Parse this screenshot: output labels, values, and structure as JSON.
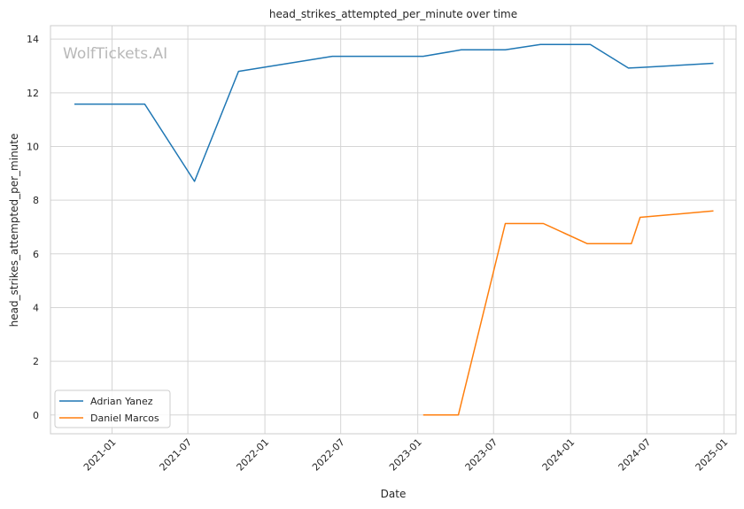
{
  "chart_data": {
    "type": "line",
    "title": "head_strikes_attempted_per_minute over time",
    "xlabel": "Date",
    "ylabel": "head_strikes_attempted_per_minute",
    "watermark": "WolfTickets.AI",
    "x_ticks": [
      "2021-01",
      "2021-07",
      "2022-01",
      "2022-07",
      "2023-01",
      "2023-07",
      "2024-01",
      "2024-07",
      "2025-01"
    ],
    "y_ticks": [
      0,
      2,
      4,
      6,
      8,
      10,
      12,
      14
    ],
    "xlim": [
      "2020-08-07",
      "2025-01-30"
    ],
    "ylim": [
      -0.7,
      14.5
    ],
    "grid": true,
    "legend_position": "lower-left",
    "series": [
      {
        "name": "Adrian Yanez",
        "color": "#1f77b4",
        "points": [
          {
            "x": "2020-10-03",
            "y": 11.58
          },
          {
            "x": "2021-03-20",
            "y": 11.58
          },
          {
            "x": "2021-07-17",
            "y": 8.7
          },
          {
            "x": "2021-10-30",
            "y": 12.8
          },
          {
            "x": "2022-06-11",
            "y": 13.36
          },
          {
            "x": "2023-01-14",
            "y": 13.36
          },
          {
            "x": "2023-04-15",
            "y": 13.6
          },
          {
            "x": "2023-07-29",
            "y": 13.6
          },
          {
            "x": "2023-10-21",
            "y": 13.8
          },
          {
            "x": "2024-02-17",
            "y": 13.8
          },
          {
            "x": "2024-05-18",
            "y": 12.92
          },
          {
            "x": "2024-06-15",
            "y": 12.94
          },
          {
            "x": "2024-12-07",
            "y": 13.1
          }
        ]
      },
      {
        "name": "Daniel Marcos",
        "color": "#ff7f0e",
        "points": [
          {
            "x": "2023-01-14",
            "y": 0.0
          },
          {
            "x": "2023-04-08",
            "y": 0.0
          },
          {
            "x": "2023-07-29",
            "y": 7.13
          },
          {
            "x": "2023-10-28",
            "y": 7.13
          },
          {
            "x": "2024-02-10",
            "y": 6.38
          },
          {
            "x": "2024-05-25",
            "y": 6.38
          },
          {
            "x": "2024-06-15",
            "y": 7.36
          },
          {
            "x": "2024-12-07",
            "y": 7.6
          }
        ]
      }
    ]
  }
}
